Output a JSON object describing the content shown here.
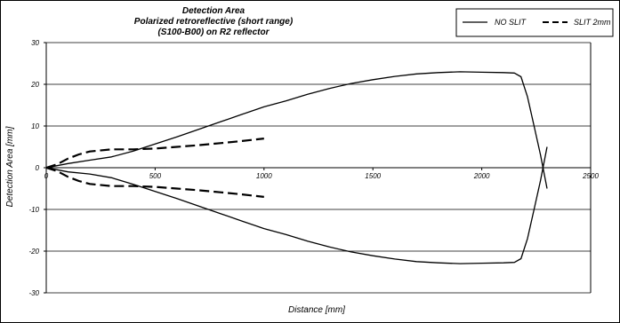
{
  "chart_data": {
    "type": "line",
    "title": [
      "Detection Area",
      "Polarized  retroreflective (short range)",
      "(S100-B00) on R2 reflector"
    ],
    "xlabel": "Distance [mm]",
    "ylabel": "Detection Area [mm]",
    "xlim": [
      0,
      2500
    ],
    "ylim": [
      -30,
      30
    ],
    "x_ticks": [
      0,
      500,
      1000,
      1500,
      2000,
      2500
    ],
    "y_ticks": [
      -30,
      -20,
      -10,
      0,
      10,
      20,
      30
    ],
    "grid": "horizontal",
    "legend_position": "top-right",
    "series": [
      {
        "name": "NO SLIT",
        "style": "solid",
        "color": "#000000",
        "points": [
          [
            0,
            0
          ],
          [
            50,
            0.5
          ],
          [
            100,
            1
          ],
          [
            200,
            1.8
          ],
          [
            300,
            2.6
          ],
          [
            400,
            4
          ],
          [
            500,
            5.7
          ],
          [
            600,
            7.4
          ],
          [
            700,
            9.2
          ],
          [
            800,
            11
          ],
          [
            900,
            12.8
          ],
          [
            1000,
            14.6
          ],
          [
            1100,
            16
          ],
          [
            1200,
            17.6
          ],
          [
            1300,
            19
          ],
          [
            1400,
            20.2
          ],
          [
            1500,
            21.1
          ],
          [
            1600,
            21.9
          ],
          [
            1700,
            22.5
          ],
          [
            1800,
            22.8
          ],
          [
            1900,
            23
          ],
          [
            2000,
            22.9
          ],
          [
            2100,
            22.8
          ],
          [
            2150,
            22.7
          ],
          [
            2180,
            21.8
          ],
          [
            2210,
            17
          ],
          [
            2240,
            10
          ],
          [
            2270,
            3
          ],
          [
            2300,
            -5
          ]
        ]
      },
      {
        "name": "NO SLIT",
        "style": "solid",
        "color": "#000000",
        "points": [
          [
            0,
            0
          ],
          [
            50,
            -0.5
          ],
          [
            100,
            -1
          ],
          [
            200,
            -1.5
          ],
          [
            300,
            -2.4
          ],
          [
            400,
            -4
          ],
          [
            500,
            -5.7
          ],
          [
            600,
            -7.4
          ],
          [
            700,
            -9.2
          ],
          [
            800,
            -11
          ],
          [
            900,
            -12.8
          ],
          [
            1000,
            -14.6
          ],
          [
            1100,
            -16
          ],
          [
            1200,
            -17.6
          ],
          [
            1300,
            -19
          ],
          [
            1400,
            -20.2
          ],
          [
            1500,
            -21.1
          ],
          [
            1600,
            -21.9
          ],
          [
            1700,
            -22.5
          ],
          [
            1800,
            -22.8
          ],
          [
            1900,
            -23
          ],
          [
            2000,
            -22.9
          ],
          [
            2100,
            -22.8
          ],
          [
            2150,
            -22.7
          ],
          [
            2180,
            -21.8
          ],
          [
            2210,
            -17
          ],
          [
            2240,
            -10
          ],
          [
            2270,
            -3
          ],
          [
            2300,
            5
          ]
        ]
      },
      {
        "name": "SLIT 2mm",
        "style": "dashed",
        "color": "#000000",
        "points": [
          [
            0,
            0
          ],
          [
            50,
            0.8
          ],
          [
            100,
            2.2
          ],
          [
            150,
            3.2
          ],
          [
            200,
            3.9
          ],
          [
            300,
            4.4
          ],
          [
            400,
            4.4
          ],
          [
            500,
            4.6
          ],
          [
            600,
            5
          ],
          [
            700,
            5.4
          ],
          [
            800,
            5.9
          ],
          [
            900,
            6.4
          ],
          [
            1000,
            7
          ]
        ]
      },
      {
        "name": "SLIT 2mm",
        "style": "dashed",
        "color": "#000000",
        "points": [
          [
            0,
            0
          ],
          [
            50,
            -0.8
          ],
          [
            100,
            -2.2
          ],
          [
            150,
            -3.2
          ],
          [
            200,
            -3.9
          ],
          [
            300,
            -4.4
          ],
          [
            400,
            -4.4
          ],
          [
            500,
            -4.6
          ],
          [
            600,
            -5
          ],
          [
            700,
            -5.4
          ],
          [
            800,
            -5.9
          ],
          [
            900,
            -6.4
          ],
          [
            1000,
            -7
          ]
        ]
      }
    ],
    "legend": [
      {
        "label": "NO SLIT",
        "style": "solid"
      },
      {
        "label": "SLIT 2mm",
        "style": "dashed"
      }
    ]
  }
}
